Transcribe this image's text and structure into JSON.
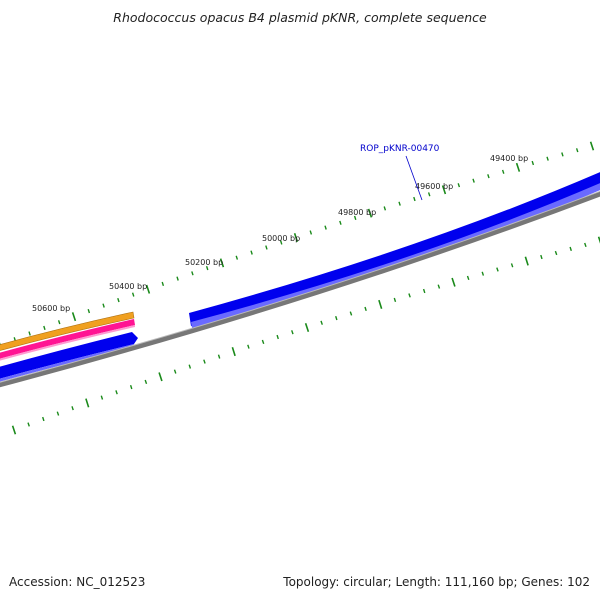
{
  "title": "Rhodococcus opacus B4 plasmid pKNR, complete sequence",
  "footer": {
    "accession": "Accession: NC_012523",
    "summary": "Topology: circular; Length: 111,160 bp; Genes: 102"
  },
  "scale_labels": [
    "50600 bp",
    "50400 bp",
    "50200 bp",
    "50000 bp",
    "49800 bp",
    "49600 bp",
    "49400 bp"
  ],
  "gene_label": "ROP_pKNR-00470",
  "colors": {
    "tick": "#1a8a1a",
    "gene_blue": "#0000ee",
    "gene_blue_light": "#6a6aff",
    "backbone": "#777777",
    "orange": "#f0a020",
    "magenta": "#ff1493",
    "label": "#0000cc"
  }
}
